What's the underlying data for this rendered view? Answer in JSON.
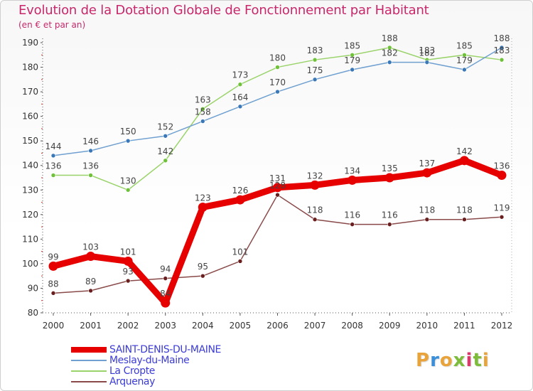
{
  "header": {
    "title": "Evolution de la Dotation Globale de Fonctionnement par Habitant",
    "subtitle": "(en € et par an)"
  },
  "logo": {
    "letters": [
      "P",
      "r",
      "o",
      "x",
      "i",
      "t",
      "i"
    ],
    "colors": [
      "#e8a33b",
      "#3a8fd9",
      "#e8a33b",
      "#7dbb3b",
      "#d63b6b",
      "#7dbb3b",
      "#e8a33b"
    ]
  },
  "chart_data": {
    "type": "line",
    "title": "Evolution de la Dotation Globale de Fonctionnement par Habitant",
    "subtitle": "(en € et par an)",
    "xlabel": "",
    "ylabel": "",
    "ylim": [
      80,
      190
    ],
    "yticks": [
      80,
      90,
      100,
      110,
      120,
      130,
      140,
      150,
      160,
      170,
      180,
      190
    ],
    "grid": false,
    "legend_position": "bottom-left",
    "x": [
      "2000",
      "2001",
      "2002",
      "2003",
      "2004",
      "2005",
      "2006",
      "2007",
      "2008",
      "2009",
      "2010",
      "2011",
      "2012"
    ],
    "series": [
      {
        "name": "SAINT-DENIS-DU-MAINE",
        "color": "#e60000",
        "thick": true,
        "values": [
          99,
          103,
          101,
          84,
          123,
          126,
          131,
          132,
          134,
          135,
          137,
          142,
          136
        ],
        "labels": [
          "99",
          "103",
          "101",
          "84",
          "123",
          "126",
          "131",
          "132",
          "134",
          "135",
          "137",
          "142",
          "136"
        ]
      },
      {
        "name": "Meslay-du-Maine",
        "color": "#6fa0d0",
        "dot": "#3b78b8",
        "values": [
          144,
          146,
          150,
          152,
          158,
          164,
          170,
          175,
          179,
          182,
          182,
          179,
          188
        ],
        "labels": [
          "144",
          "146",
          "150",
          "152",
          "158",
          "164",
          "170",
          "175",
          "179",
          "182",
          "182",
          "179",
          "188"
        ]
      },
      {
        "name": "La Cropte",
        "color": "#9ad36a",
        "dot": "#6fc13a",
        "values": [
          136,
          136,
          130,
          142,
          163,
          173,
          180,
          183,
          185,
          188,
          183,
          185,
          183
        ],
        "labels": [
          "136",
          "136",
          "130",
          "142",
          "163",
          "173",
          "180",
          "183",
          "185",
          "188",
          "183",
          "185",
          "183"
        ]
      },
      {
        "name": "Arquenay",
        "color": "#8a4a4a",
        "dot": "#6a1f1f",
        "values": [
          88,
          89,
          93,
          94,
          95,
          101,
          128,
          118,
          116,
          116,
          118,
          118,
          119
        ],
        "labels": [
          "88",
          "89",
          "93",
          "94",
          "95",
          "101",
          "128",
          "118",
          "116",
          "116",
          "118",
          "118",
          "119"
        ]
      }
    ]
  }
}
